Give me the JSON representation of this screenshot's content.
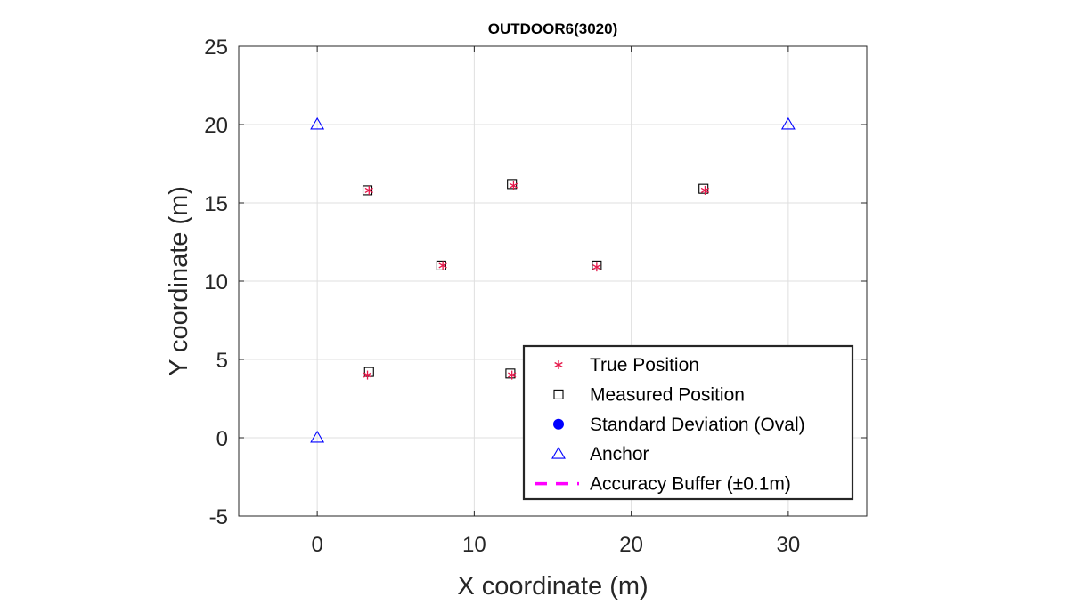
{
  "chart_data": {
    "type": "scatter",
    "title": "OUTDOOR6(3020)",
    "xlabel": "X coordinate (m)",
    "ylabel": "Y coordinate (m)",
    "xlim": [
      -5,
      35
    ],
    "ylim": [
      -5,
      25
    ],
    "x_ticks": [
      0,
      10,
      20,
      30
    ],
    "y_ticks": [
      -5,
      0,
      5,
      10,
      15,
      20,
      25
    ],
    "grid": true,
    "legend_position": "bottom-right",
    "series": [
      {
        "name": "True Position",
        "marker": "asterisk",
        "color": "#e6194b",
        "points": [
          {
            "x": 3.3,
            "y": 15.8
          },
          {
            "x": 12.5,
            "y": 16.1
          },
          {
            "x": 24.7,
            "y": 15.8
          },
          {
            "x": 8.0,
            "y": 11.0
          },
          {
            "x": 17.8,
            "y": 10.9
          },
          {
            "x": 3.2,
            "y": 4.0
          },
          {
            "x": 12.4,
            "y": 4.0
          }
        ]
      },
      {
        "name": "Measured Position",
        "marker": "square",
        "color": "#000000",
        "points": [
          {
            "x": 3.2,
            "y": 15.8
          },
          {
            "x": 12.4,
            "y": 16.2
          },
          {
            "x": 24.6,
            "y": 15.9
          },
          {
            "x": 7.9,
            "y": 11.0
          },
          {
            "x": 17.8,
            "y": 11.0
          },
          {
            "x": 3.3,
            "y": 4.2
          },
          {
            "x": 12.3,
            "y": 4.1
          }
        ]
      },
      {
        "name": "Standard Deviation (Oval)",
        "marker": "filled-circle",
        "color": "#0000ff",
        "points": []
      },
      {
        "name": "Anchor",
        "marker": "triangle",
        "color": "#0000ff",
        "points": [
          {
            "x": 0,
            "y": 20
          },
          {
            "x": 30,
            "y": 20
          },
          {
            "x": 0,
            "y": 0
          }
        ]
      },
      {
        "name": "Accuracy Buffer (±0.1m)",
        "marker": "dashed-line",
        "color": "#ff00ff",
        "points": []
      }
    ]
  }
}
